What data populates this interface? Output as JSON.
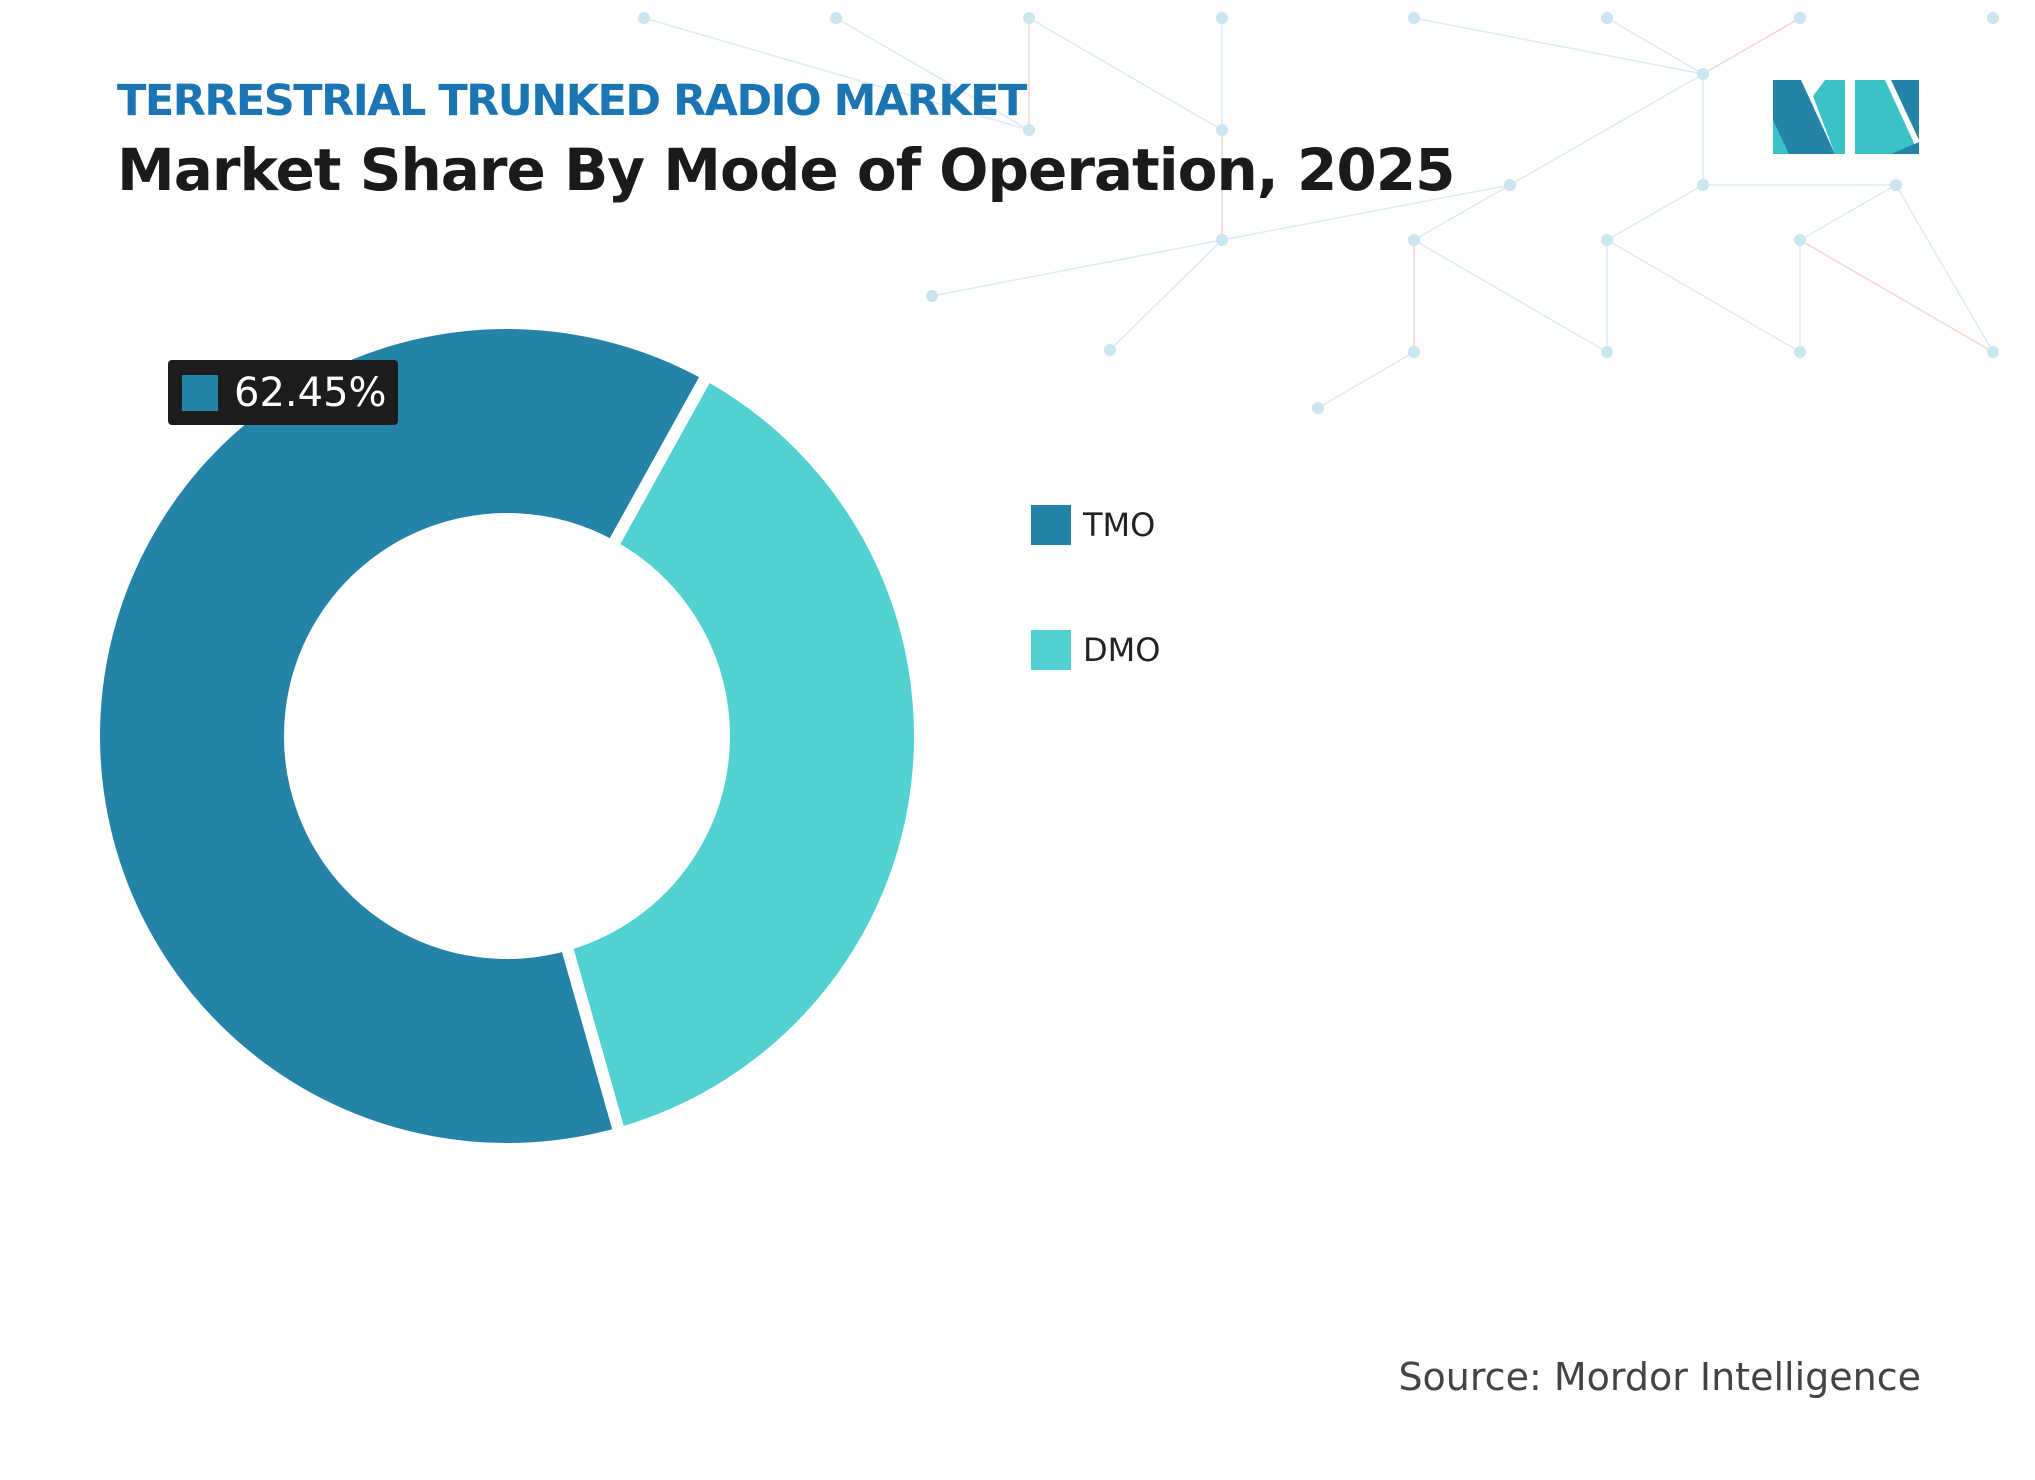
{
  "header": {
    "subtitle": "TERRESTRIAL TRUNKED RADIO MARKET",
    "title": "Market Share By Mode of Operation, 2025"
  },
  "chart_data": {
    "type": "pie",
    "variant": "donut",
    "categories": [
      "TMO",
      "DMO"
    ],
    "values": [
      62.45,
      37.55
    ],
    "unit": "%",
    "colors": [
      "#2683a8",
      "#52d1d3"
    ],
    "data_labels": [
      {
        "category": "TMO",
        "text": "62.45%"
      }
    ],
    "legend": {
      "position": "right",
      "entries": [
        "TMO",
        "DMO"
      ]
    }
  },
  "source": "Source: Mordor Intelligence",
  "logo": {
    "name": "mordor-intelligence-logo",
    "colors": [
      "#2683a8",
      "#39c3c6"
    ]
  }
}
